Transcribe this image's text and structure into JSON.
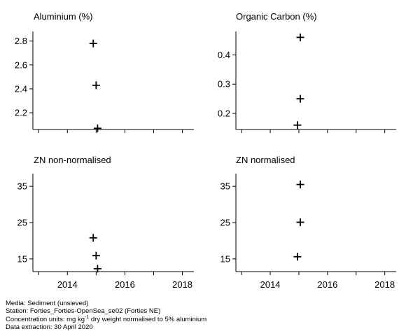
{
  "chart_data": [
    {
      "type": "scatter",
      "title": "Aluminium (%)",
      "x": [
        2014.9,
        2015.0,
        2015.05
      ],
      "y": [
        2.78,
        2.43,
        2.07
      ],
      "xlim": [
        2012.8,
        2018.4
      ],
      "ylim": [
        2.06,
        2.88
      ],
      "yticks": [
        2.2,
        2.4,
        2.6,
        2.8
      ],
      "ytick_labels": [
        "2.2",
        "2.4",
        "2.6",
        "2.8"
      ],
      "xticks": [
        2013,
        2014,
        2015,
        2016,
        2017,
        2018
      ],
      "xtick_labels": [],
      "marker": "plus"
    },
    {
      "type": "scatter",
      "title": "Organic Carbon (%)",
      "x": [
        2015.05,
        2015.05,
        2014.95
      ],
      "y": [
        0.46,
        0.25,
        0.16
      ],
      "xlim": [
        2012.8,
        2018.4
      ],
      "ylim": [
        0.145,
        0.48
      ],
      "yticks": [
        0.2,
        0.3,
        0.4
      ],
      "ytick_labels": [
        "0.2",
        "0.3",
        "0.4"
      ],
      "xticks": [
        2013,
        2014,
        2015,
        2016,
        2017,
        2018
      ],
      "xtick_labels": [],
      "marker": "plus"
    },
    {
      "type": "scatter",
      "title": "ZN non-normalised",
      "x": [
        2014.9,
        2015.0,
        2015.05
      ],
      "y": [
        20.8,
        15.9,
        12.3
      ],
      "xlim": [
        2012.8,
        2018.4
      ],
      "ylim": [
        11.5,
        38.5
      ],
      "yticks": [
        15,
        25,
        35
      ],
      "ytick_labels": [
        "15",
        "25",
        "35"
      ],
      "xticks": [
        2013,
        2014,
        2015,
        2016,
        2017,
        2018
      ],
      "xtick_labels": [
        "2014",
        "2016",
        "2018"
      ],
      "xtick_label_values": [
        2014,
        2016,
        2018
      ],
      "marker": "plus"
    },
    {
      "type": "scatter",
      "title": "ZN normalised",
      "x": [
        2015.05,
        2015.05,
        2014.95
      ],
      "y": [
        35.5,
        25.1,
        15.6
      ],
      "xlim": [
        2012.8,
        2018.4
      ],
      "ylim": [
        11.5,
        38.5
      ],
      "yticks": [
        15,
        25,
        35
      ],
      "ytick_labels": [
        "15",
        "25",
        "35"
      ],
      "xticks": [
        2013,
        2014,
        2015,
        2016,
        2017,
        2018
      ],
      "xtick_labels": [
        "2014",
        "2016",
        "2018"
      ],
      "xtick_label_values": [
        2014,
        2016,
        2018
      ],
      "marker": "plus"
    }
  ],
  "footer": {
    "media": "Media: Sediment (unsieved)",
    "station": "Station: Forties_Forties-OpenSea_se02 (Forties NE)",
    "units_prefix": "Concentration units:  mg kg",
    "units_sup": "-1",
    "units_suffix": " dry weight normalised to 5% aluminium",
    "extraction": "Data extraction: 30 April 2020"
  }
}
